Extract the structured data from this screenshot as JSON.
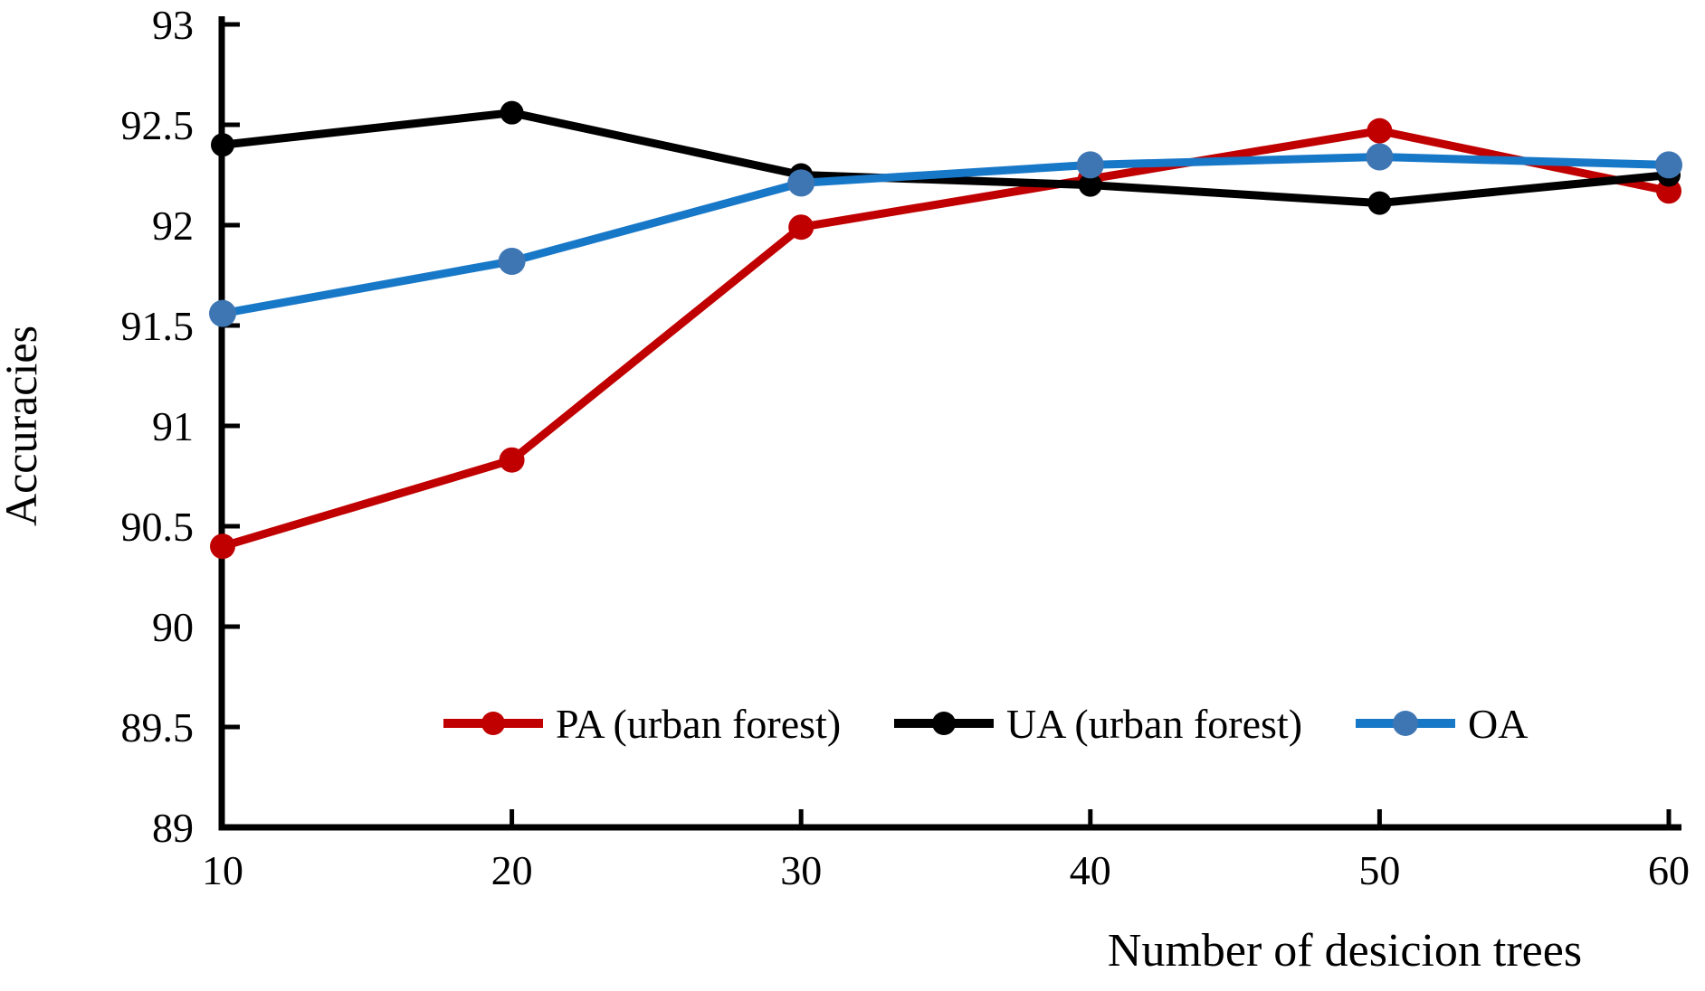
{
  "chart_data": {
    "type": "line",
    "title": "",
    "xlabel": "Number of desicion trees",
    "ylabel": "Accuracies",
    "x": [
      10,
      20,
      30,
      40,
      50,
      60
    ],
    "xticks": [
      "10",
      "20",
      "30",
      "40",
      "50",
      "60"
    ],
    "yticks": [
      "93",
      "92.5",
      "92",
      "91.5",
      "91",
      "90.5",
      "90",
      "89.5",
      "89"
    ],
    "ylim": [
      89,
      93
    ],
    "xlim": [
      10,
      60
    ],
    "ytick_step": 0.5,
    "grid": false,
    "legend_position": "inside-bottom-center-horizontal",
    "axis_color": "#000000",
    "series": [
      {
        "name": "PA (urban forest)",
        "color": "#C00000",
        "marker": "circle",
        "marker_color": "#C00000",
        "values": [
          90.4,
          90.83,
          91.99,
          92.23,
          92.47,
          92.17
        ]
      },
      {
        "name": "UA (urban forest)",
        "color": "#000000",
        "marker": "circle",
        "marker_color": "#000000",
        "values": [
          92.4,
          92.56,
          92.25,
          92.2,
          92.11,
          92.25
        ]
      },
      {
        "name": "OA",
        "color": "#1878C8",
        "marker": "circle",
        "marker_color": "#3E76B4",
        "values": [
          91.56,
          91.82,
          92.21,
          92.3,
          92.34,
          92.3
        ]
      }
    ]
  }
}
